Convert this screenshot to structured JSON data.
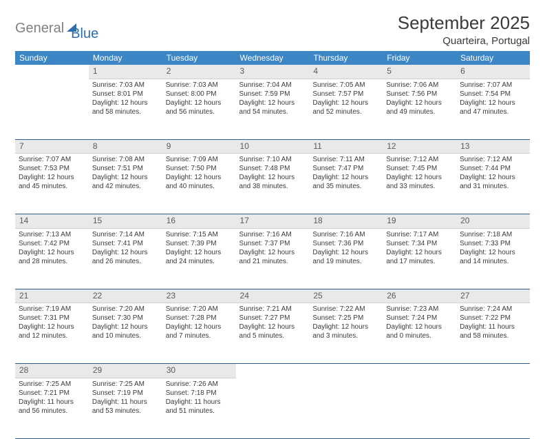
{
  "logo": {
    "part1": "General",
    "part2": "Blue"
  },
  "title": "September 2025",
  "location": "Quarteira, Portugal",
  "weekdays": [
    "Sunday",
    "Monday",
    "Tuesday",
    "Wednesday",
    "Thursday",
    "Friday",
    "Saturday"
  ],
  "colors": {
    "header_bg": "#3d86c6",
    "header_text": "#ffffff",
    "daynum_bg": "#e9e9e9",
    "rule": "#2f5d8a",
    "body_text": "#3a3a3a",
    "logo_gray": "#808080",
    "logo_blue": "#2f6fb0"
  },
  "weeks": [
    {
      "nums": [
        "",
        "1",
        "2",
        "3",
        "4",
        "5",
        "6"
      ],
      "cells": [
        {
          "sunrise": "",
          "sunset": "",
          "daylight": ""
        },
        {
          "sunrise": "Sunrise: 7:03 AM",
          "sunset": "Sunset: 8:01 PM",
          "daylight": "Daylight: 12 hours and 58 minutes."
        },
        {
          "sunrise": "Sunrise: 7:03 AM",
          "sunset": "Sunset: 8:00 PM",
          "daylight": "Daylight: 12 hours and 56 minutes."
        },
        {
          "sunrise": "Sunrise: 7:04 AM",
          "sunset": "Sunset: 7:59 PM",
          "daylight": "Daylight: 12 hours and 54 minutes."
        },
        {
          "sunrise": "Sunrise: 7:05 AM",
          "sunset": "Sunset: 7:57 PM",
          "daylight": "Daylight: 12 hours and 52 minutes."
        },
        {
          "sunrise": "Sunrise: 7:06 AM",
          "sunset": "Sunset: 7:56 PM",
          "daylight": "Daylight: 12 hours and 49 minutes."
        },
        {
          "sunrise": "Sunrise: 7:07 AM",
          "sunset": "Sunset: 7:54 PM",
          "daylight": "Daylight: 12 hours and 47 minutes."
        }
      ]
    },
    {
      "nums": [
        "7",
        "8",
        "9",
        "10",
        "11",
        "12",
        "13"
      ],
      "cells": [
        {
          "sunrise": "Sunrise: 7:07 AM",
          "sunset": "Sunset: 7:53 PM",
          "daylight": "Daylight: 12 hours and 45 minutes."
        },
        {
          "sunrise": "Sunrise: 7:08 AM",
          "sunset": "Sunset: 7:51 PM",
          "daylight": "Daylight: 12 hours and 42 minutes."
        },
        {
          "sunrise": "Sunrise: 7:09 AM",
          "sunset": "Sunset: 7:50 PM",
          "daylight": "Daylight: 12 hours and 40 minutes."
        },
        {
          "sunrise": "Sunrise: 7:10 AM",
          "sunset": "Sunset: 7:48 PM",
          "daylight": "Daylight: 12 hours and 38 minutes."
        },
        {
          "sunrise": "Sunrise: 7:11 AM",
          "sunset": "Sunset: 7:47 PM",
          "daylight": "Daylight: 12 hours and 35 minutes."
        },
        {
          "sunrise": "Sunrise: 7:12 AM",
          "sunset": "Sunset: 7:45 PM",
          "daylight": "Daylight: 12 hours and 33 minutes."
        },
        {
          "sunrise": "Sunrise: 7:12 AM",
          "sunset": "Sunset: 7:44 PM",
          "daylight": "Daylight: 12 hours and 31 minutes."
        }
      ]
    },
    {
      "nums": [
        "14",
        "15",
        "16",
        "17",
        "18",
        "19",
        "20"
      ],
      "cells": [
        {
          "sunrise": "Sunrise: 7:13 AM",
          "sunset": "Sunset: 7:42 PM",
          "daylight": "Daylight: 12 hours and 28 minutes."
        },
        {
          "sunrise": "Sunrise: 7:14 AM",
          "sunset": "Sunset: 7:41 PM",
          "daylight": "Daylight: 12 hours and 26 minutes."
        },
        {
          "sunrise": "Sunrise: 7:15 AM",
          "sunset": "Sunset: 7:39 PM",
          "daylight": "Daylight: 12 hours and 24 minutes."
        },
        {
          "sunrise": "Sunrise: 7:16 AM",
          "sunset": "Sunset: 7:37 PM",
          "daylight": "Daylight: 12 hours and 21 minutes."
        },
        {
          "sunrise": "Sunrise: 7:16 AM",
          "sunset": "Sunset: 7:36 PM",
          "daylight": "Daylight: 12 hours and 19 minutes."
        },
        {
          "sunrise": "Sunrise: 7:17 AM",
          "sunset": "Sunset: 7:34 PM",
          "daylight": "Daylight: 12 hours and 17 minutes."
        },
        {
          "sunrise": "Sunrise: 7:18 AM",
          "sunset": "Sunset: 7:33 PM",
          "daylight": "Daylight: 12 hours and 14 minutes."
        }
      ]
    },
    {
      "nums": [
        "21",
        "22",
        "23",
        "24",
        "25",
        "26",
        "27"
      ],
      "cells": [
        {
          "sunrise": "Sunrise: 7:19 AM",
          "sunset": "Sunset: 7:31 PM",
          "daylight": "Daylight: 12 hours and 12 minutes."
        },
        {
          "sunrise": "Sunrise: 7:20 AM",
          "sunset": "Sunset: 7:30 PM",
          "daylight": "Daylight: 12 hours and 10 minutes."
        },
        {
          "sunrise": "Sunrise: 7:20 AM",
          "sunset": "Sunset: 7:28 PM",
          "daylight": "Daylight: 12 hours and 7 minutes."
        },
        {
          "sunrise": "Sunrise: 7:21 AM",
          "sunset": "Sunset: 7:27 PM",
          "daylight": "Daylight: 12 hours and 5 minutes."
        },
        {
          "sunrise": "Sunrise: 7:22 AM",
          "sunset": "Sunset: 7:25 PM",
          "daylight": "Daylight: 12 hours and 3 minutes."
        },
        {
          "sunrise": "Sunrise: 7:23 AM",
          "sunset": "Sunset: 7:24 PM",
          "daylight": "Daylight: 12 hours and 0 minutes."
        },
        {
          "sunrise": "Sunrise: 7:24 AM",
          "sunset": "Sunset: 7:22 PM",
          "daylight": "Daylight: 11 hours and 58 minutes."
        }
      ]
    },
    {
      "nums": [
        "28",
        "29",
        "30",
        "",
        "",
        "",
        ""
      ],
      "cells": [
        {
          "sunrise": "Sunrise: 7:25 AM",
          "sunset": "Sunset: 7:21 PM",
          "daylight": "Daylight: 11 hours and 56 minutes."
        },
        {
          "sunrise": "Sunrise: 7:25 AM",
          "sunset": "Sunset: 7:19 PM",
          "daylight": "Daylight: 11 hours and 53 minutes."
        },
        {
          "sunrise": "Sunrise: 7:26 AM",
          "sunset": "Sunset: 7:18 PM",
          "daylight": "Daylight: 11 hours and 51 minutes."
        },
        {
          "sunrise": "",
          "sunset": "",
          "daylight": ""
        },
        {
          "sunrise": "",
          "sunset": "",
          "daylight": ""
        },
        {
          "sunrise": "",
          "sunset": "",
          "daylight": ""
        },
        {
          "sunrise": "",
          "sunset": "",
          "daylight": ""
        }
      ]
    }
  ]
}
